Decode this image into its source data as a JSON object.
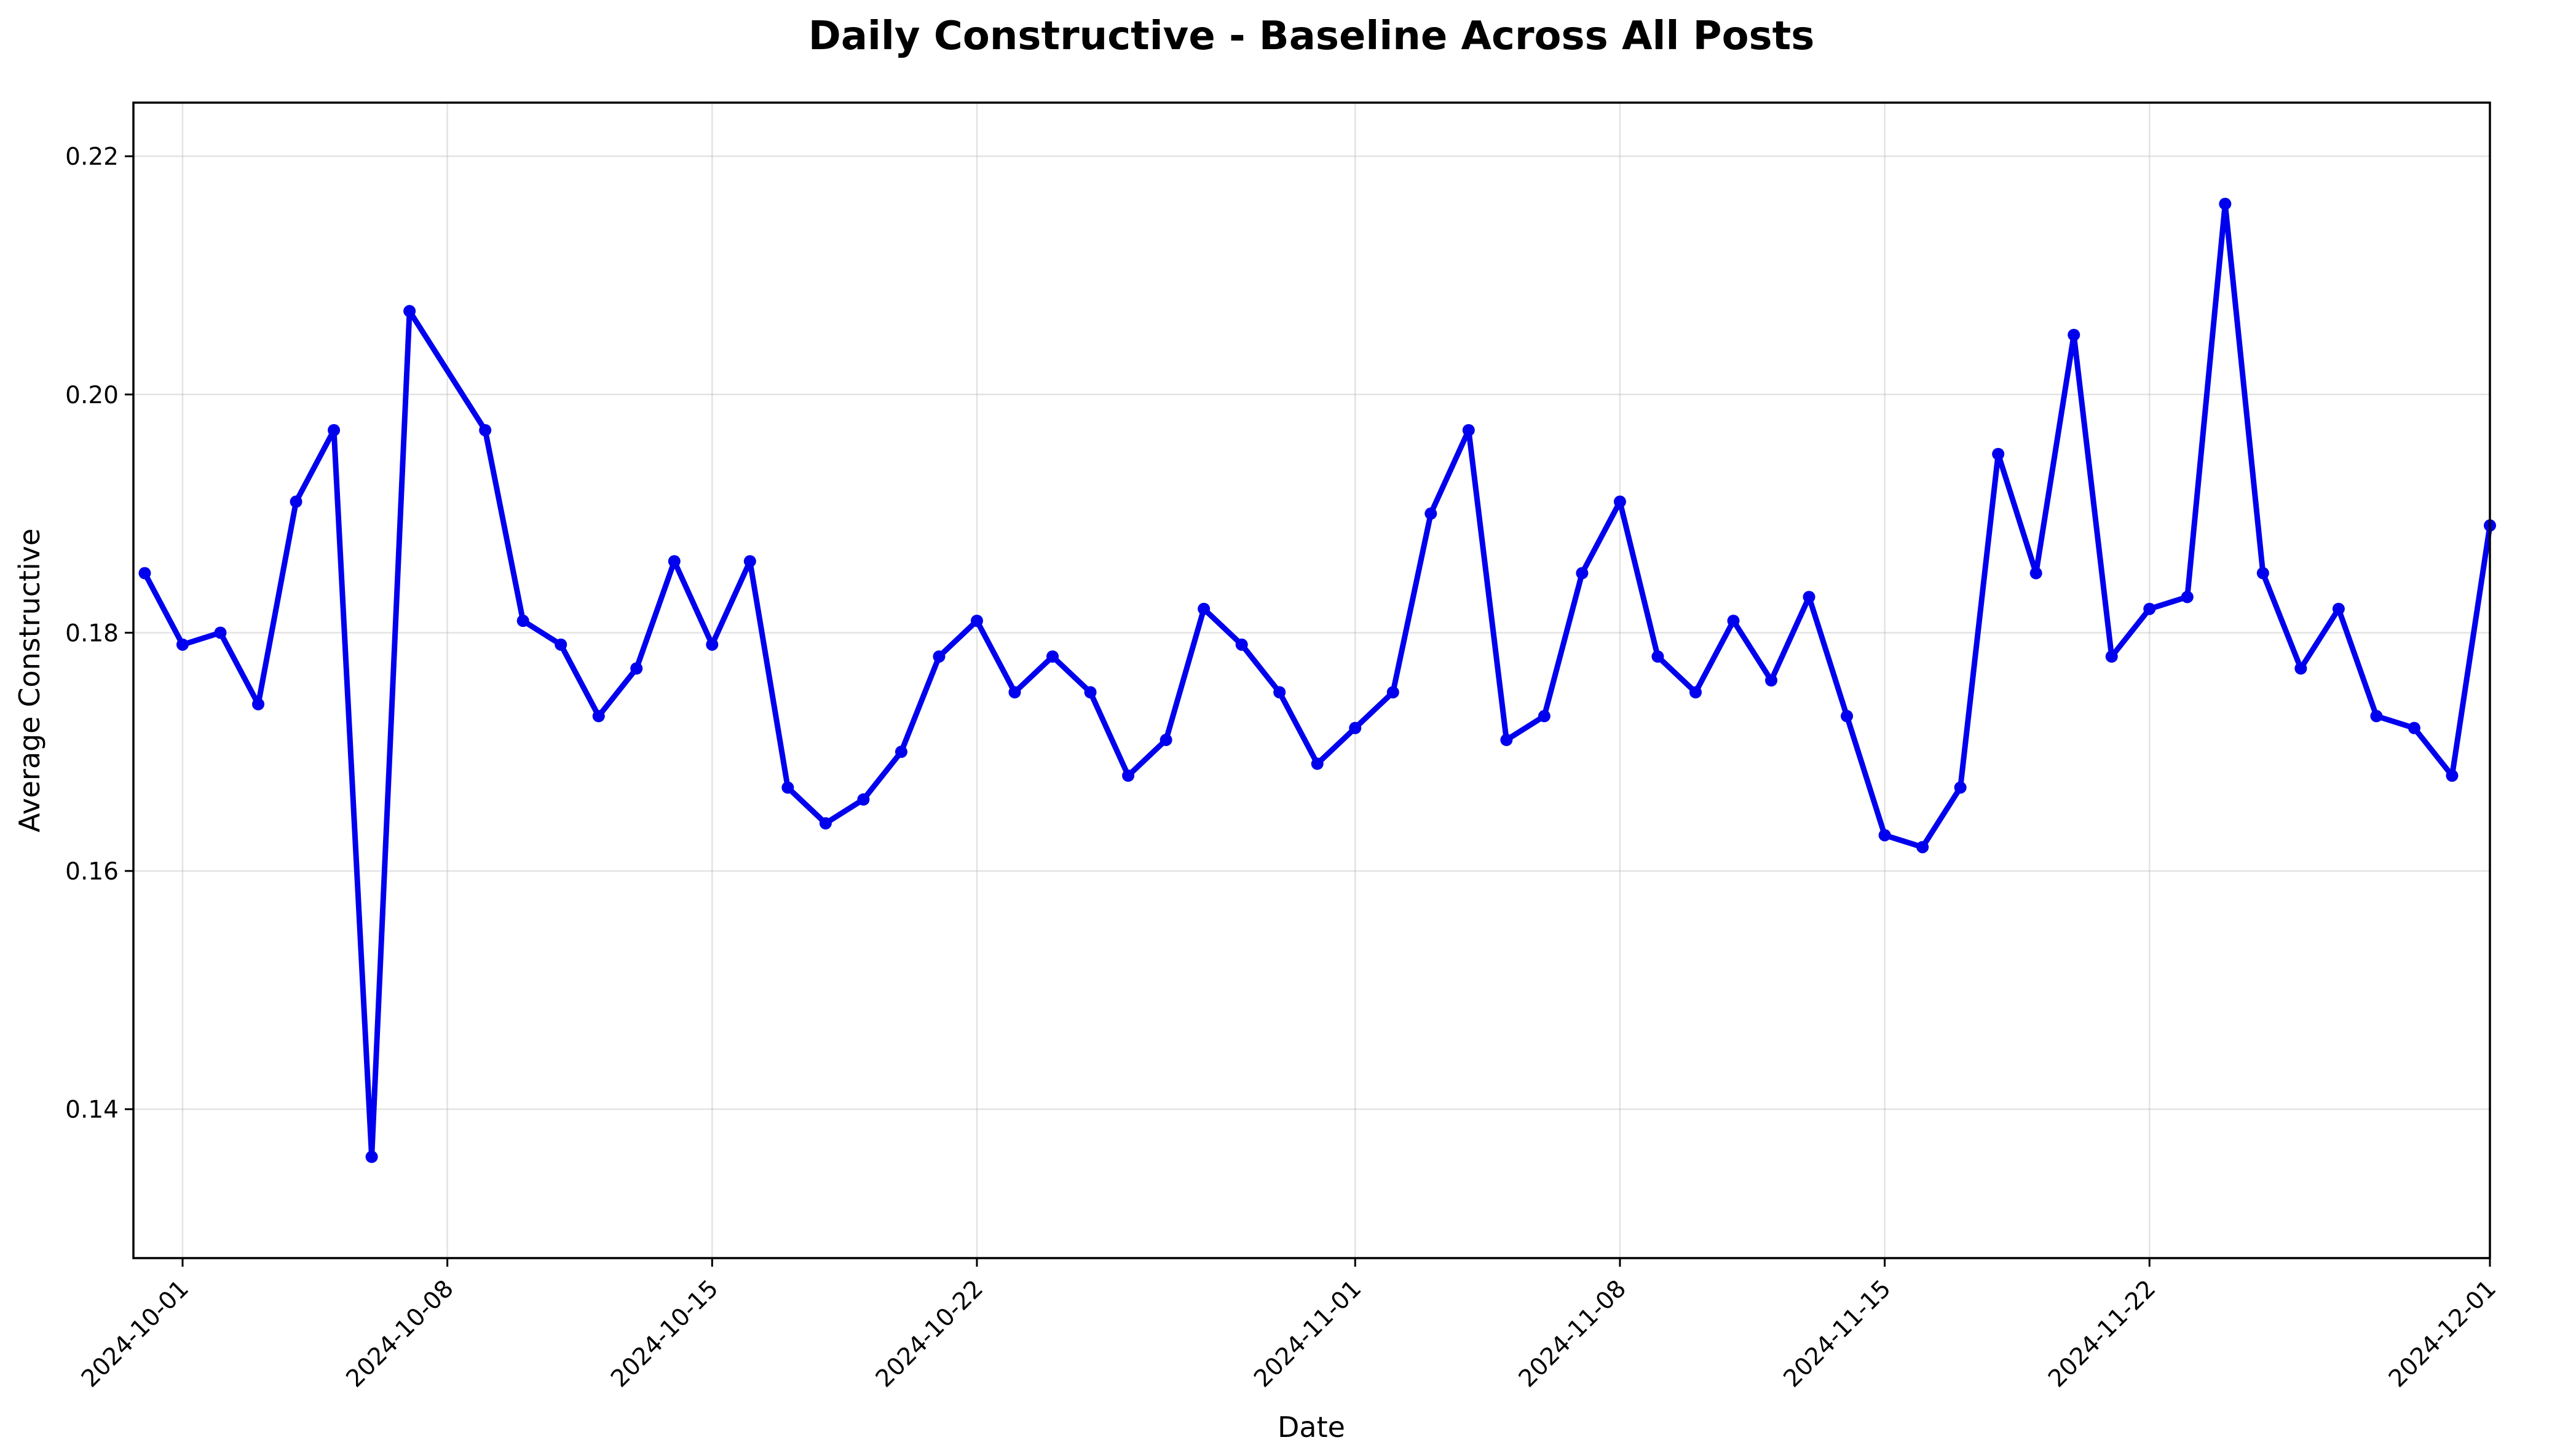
{
  "chart_data": {
    "type": "line",
    "title": "Daily Constructive - Baseline Across All Posts",
    "xlabel": "Date",
    "ylabel": "Average Constructive",
    "xlim": [
      "2024-09-30",
      "2024-12-01"
    ],
    "ylim": [
      0.1275,
      0.2245
    ],
    "grid": true,
    "color": "#0000ee",
    "x_ticks": [
      "2024-10-01",
      "2024-10-08",
      "2024-10-15",
      "2024-10-22",
      "2024-11-01",
      "2024-11-08",
      "2024-11-15",
      "2024-11-22",
      "2024-12-01"
    ],
    "y_ticks": [
      "0.14",
      "0.16",
      "0.18",
      "0.20",
      "0.22"
    ],
    "series": [
      {
        "x": [
          "2024-09-30",
          "2024-10-01",
          "2024-10-02",
          "2024-10-03",
          "2024-10-04",
          "2024-10-05",
          "2024-10-06",
          "2024-10-07",
          "2024-10-09",
          "2024-10-10",
          "2024-10-11",
          "2024-10-12",
          "2024-10-13",
          "2024-10-14",
          "2024-10-15",
          "2024-10-16",
          "2024-10-17",
          "2024-10-18",
          "2024-10-19",
          "2024-10-20",
          "2024-10-21",
          "2024-10-22",
          "2024-10-23",
          "2024-10-24",
          "2024-10-25",
          "2024-10-26",
          "2024-10-27",
          "2024-10-28",
          "2024-10-29",
          "2024-10-30",
          "2024-10-31",
          "2024-11-01",
          "2024-11-02",
          "2024-11-03",
          "2024-11-04",
          "2024-11-05",
          "2024-11-06",
          "2024-11-07",
          "2024-11-08",
          "2024-11-09",
          "2024-11-10",
          "2024-11-11",
          "2024-11-12",
          "2024-11-13",
          "2024-11-14",
          "2024-11-15",
          "2024-11-16",
          "2024-11-17",
          "2024-11-18",
          "2024-11-19",
          "2024-11-20",
          "2024-11-21",
          "2024-11-22",
          "2024-11-23",
          "2024-11-24",
          "2024-11-25",
          "2024-11-26",
          "2024-11-27",
          "2024-11-28",
          "2024-11-29",
          "2024-11-30",
          "2024-12-01"
        ],
        "y": [
          0.185,
          0.179,
          0.18,
          0.174,
          0.191,
          0.197,
          0.136,
          0.207,
          0.197,
          0.181,
          0.179,
          0.173,
          0.177,
          0.186,
          0.179,
          0.186,
          0.167,
          0.164,
          0.166,
          0.17,
          0.178,
          0.181,
          0.175,
          0.178,
          0.175,
          0.168,
          0.171,
          0.182,
          0.179,
          0.175,
          0.169,
          0.172,
          0.175,
          0.19,
          0.197,
          0.171,
          0.173,
          0.185,
          0.191,
          0.178,
          0.175,
          0.181,
          0.176,
          0.183,
          0.173,
          0.163,
          0.162,
          0.167,
          0.195,
          0.185,
          0.205,
          0.178,
          0.182,
          0.183,
          0.216,
          0.185,
          0.177,
          0.182,
          0.173,
          0.172,
          0.168,
          0.189
        ]
      }
    ]
  }
}
